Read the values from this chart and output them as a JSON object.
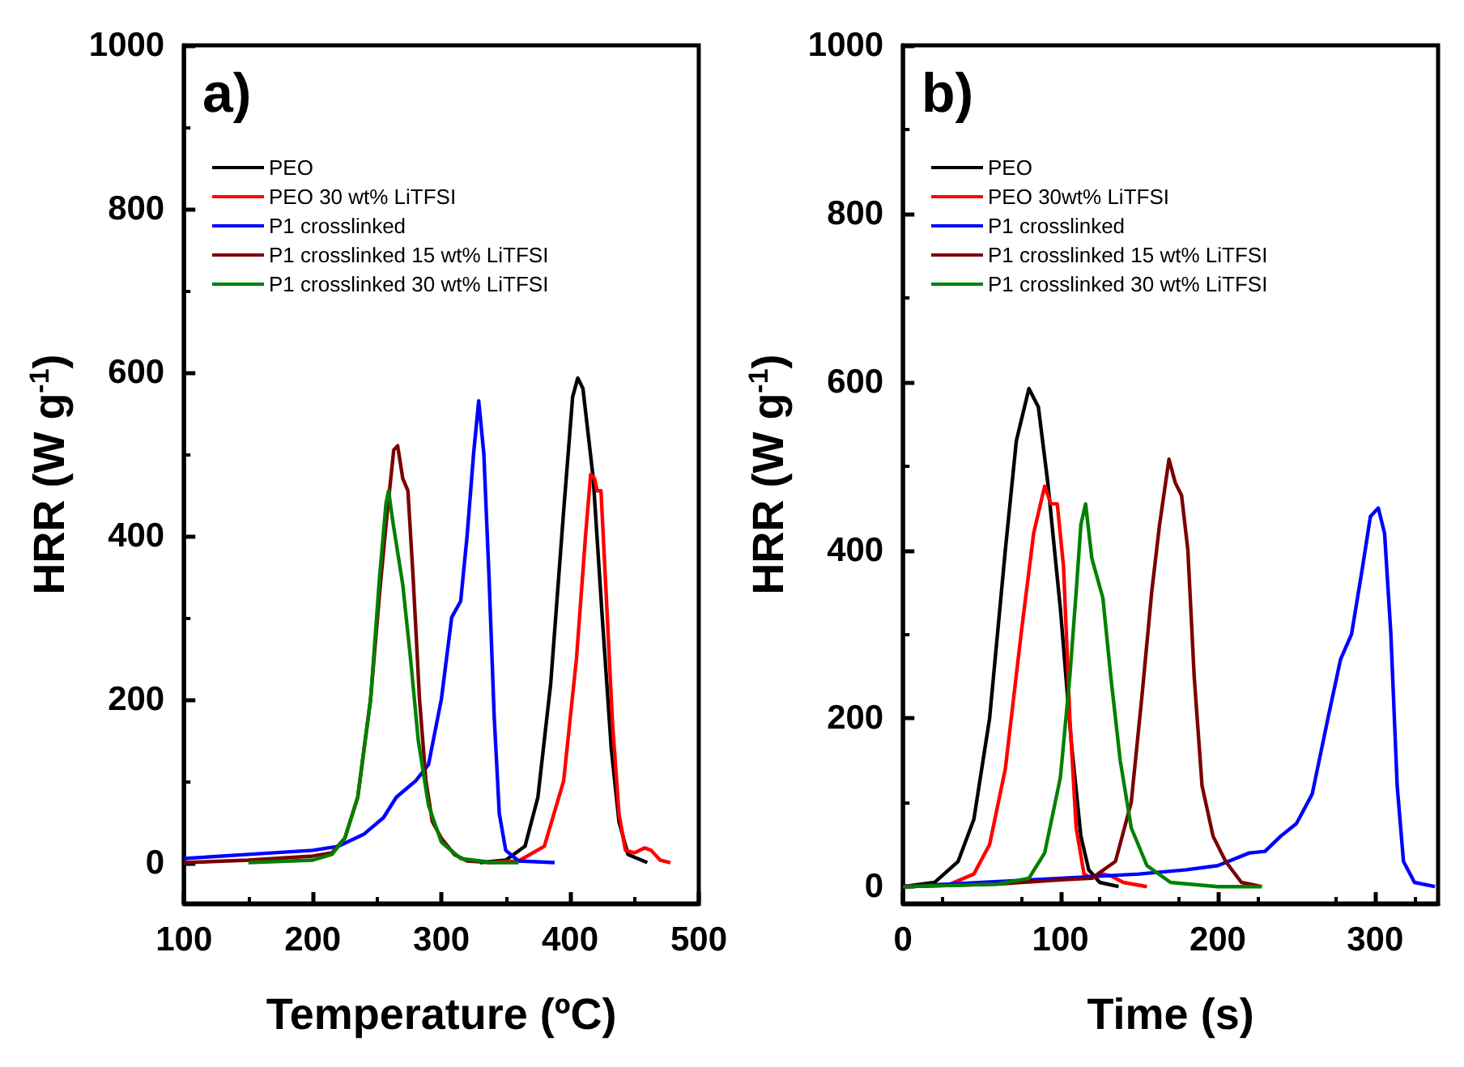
{
  "chart_data": [
    {
      "type": "line",
      "title": "a)",
      "xlabel": "Temperature (ºC)",
      "ylabel": "HRR (W g$^{-1}$)",
      "xlim": [
        100,
        500
      ],
      "xticks": [
        100,
        200,
        300,
        400,
        500
      ],
      "ylim": [
        -50,
        1000
      ],
      "yticks": [
        0,
        200,
        400,
        600,
        800,
        1000
      ],
      "grid": false,
      "legend": "top left",
      "series": [
        {
          "name": "PEO",
          "color": "#000000",
          "x": [
            330,
            350,
            365,
            375,
            385,
            395,
            402,
            406,
            410,
            418,
            425,
            432,
            438,
            445,
            460
          ],
          "values": [
            0,
            3,
            20,
            80,
            220,
            430,
            570,
            593,
            580,
            470,
            300,
            140,
            50,
            10,
            0
          ]
        },
        {
          "name": "PEO 30 wt% LiTFSI",
          "color": "#ff0000",
          "x": [
            335,
            360,
            380,
            395,
            405,
            412,
            416,
            419,
            421,
            424,
            428,
            433,
            438,
            443,
            450,
            458,
            463,
            470,
            478
          ],
          "values": [
            0,
            2,
            20,
            100,
            250,
            400,
            475,
            470,
            455,
            455,
            330,
            170,
            60,
            15,
            12,
            18,
            15,
            3,
            0
          ]
        },
        {
          "name": "P1 crosslinked",
          "color": "#0000ff",
          "x": [
            100,
            150,
            200,
            220,
            240,
            255,
            265,
            280,
            290,
            300,
            308,
            315,
            320,
            325,
            329,
            333,
            337,
            341,
            345,
            350,
            360,
            388
          ],
          "values": [
            5,
            10,
            15,
            20,
            35,
            55,
            80,
            100,
            120,
            200,
            300,
            320,
            400,
            500,
            565,
            500,
            350,
            180,
            60,
            15,
            2,
            0
          ]
        },
        {
          "name": "P1 crosslinked 15 wt% LiTFSI",
          "color": "#7b0000",
          "x": [
            100,
            150,
            200,
            215,
            225,
            235,
            245,
            252,
            258,
            263,
            266,
            270,
            274,
            278,
            283,
            288,
            293,
            300,
            310,
            320,
            340
          ],
          "values": [
            0,
            3,
            8,
            12,
            30,
            80,
            200,
            330,
            430,
            505,
            510,
            470,
            455,
            350,
            200,
            100,
            50,
            30,
            10,
            2,
            0
          ]
        },
        {
          "name": "P1 crosslinked 30 wt% LiTFSI",
          "color": "#008000",
          "x": [
            150,
            200,
            215,
            225,
            235,
            245,
            252,
            257,
            259,
            262,
            266,
            270,
            276,
            282,
            290,
            300,
            315,
            340,
            360
          ],
          "values": [
            0,
            3,
            10,
            30,
            80,
            200,
            350,
            440,
            455,
            420,
            380,
            340,
            250,
            150,
            70,
            25,
            5,
            0,
            0
          ]
        }
      ]
    },
    {
      "type": "line",
      "title": "b)",
      "xlabel": "Time (s)",
      "ylabel": "HRR (W g$^{-1}$)",
      "xlim": [
        0,
        340
      ],
      "xticks": [
        0,
        100,
        200,
        300
      ],
      "ylim": [
        -20,
        1000
      ],
      "yticks": [
        0,
        200,
        400,
        600,
        800,
        1000
      ],
      "grid": false,
      "legend": "top left",
      "series": [
        {
          "name": "PEO",
          "color": "#000000",
          "x": [
            0,
            20,
            35,
            45,
            55,
            65,
            72,
            80,
            86,
            92,
            100,
            107,
            113,
            118,
            125,
            137
          ],
          "values": [
            0,
            5,
            30,
            80,
            200,
            400,
            530,
            592,
            570,
            480,
            330,
            170,
            60,
            20,
            5,
            0
          ]
        },
        {
          "name": "PEO 30wt% LiTFSI",
          "color": "#ff0000",
          "x": [
            0,
            30,
            45,
            55,
            65,
            75,
            83,
            90,
            94,
            98,
            102,
            106,
            110,
            115,
            120,
            127,
            133,
            140,
            155
          ],
          "values": [
            0,
            3,
            15,
            50,
            140,
            300,
            420,
            476,
            455,
            455,
            380,
            200,
            70,
            15,
            10,
            15,
            12,
            5,
            0
          ]
        },
        {
          "name": "P1 crosslinked",
          "color": "#0000ff",
          "x": [
            0,
            50,
            100,
            150,
            180,
            200,
            220,
            230,
            240,
            250,
            260,
            270,
            278,
            285,
            292,
            297,
            302,
            306,
            310,
            314,
            318,
            325,
            338
          ],
          "values": [
            0,
            5,
            10,
            15,
            20,
            25,
            40,
            42,
            60,
            75,
            110,
            200,
            270,
            300,
            380,
            440,
            450,
            420,
            300,
            120,
            30,
            5,
            0
          ]
        },
        {
          "name": "P1 crosslinked 15 wt% LiTFSI",
          "color": "#7b0000",
          "x": [
            0,
            60,
            100,
            120,
            135,
            145,
            152,
            158,
            163,
            169,
            173,
            177,
            181,
            185,
            190,
            197,
            205,
            215,
            228
          ],
          "values": [
            0,
            3,
            8,
            10,
            30,
            100,
            230,
            350,
            430,
            508,
            480,
            465,
            400,
            250,
            120,
            60,
            30,
            5,
            0
          ]
        },
        {
          "name": "P1 crosslinked 30 wt% LiTFSI",
          "color": "#008000",
          "x": [
            0,
            60,
            80,
            90,
            100,
            106,
            110,
            113,
            116,
            120,
            127,
            132,
            138,
            145,
            155,
            170,
            200,
            228
          ],
          "values": [
            0,
            3,
            10,
            40,
            130,
            250,
            350,
            430,
            455,
            390,
            343,
            250,
            150,
            70,
            25,
            5,
            0,
            0
          ]
        }
      ]
    }
  ]
}
